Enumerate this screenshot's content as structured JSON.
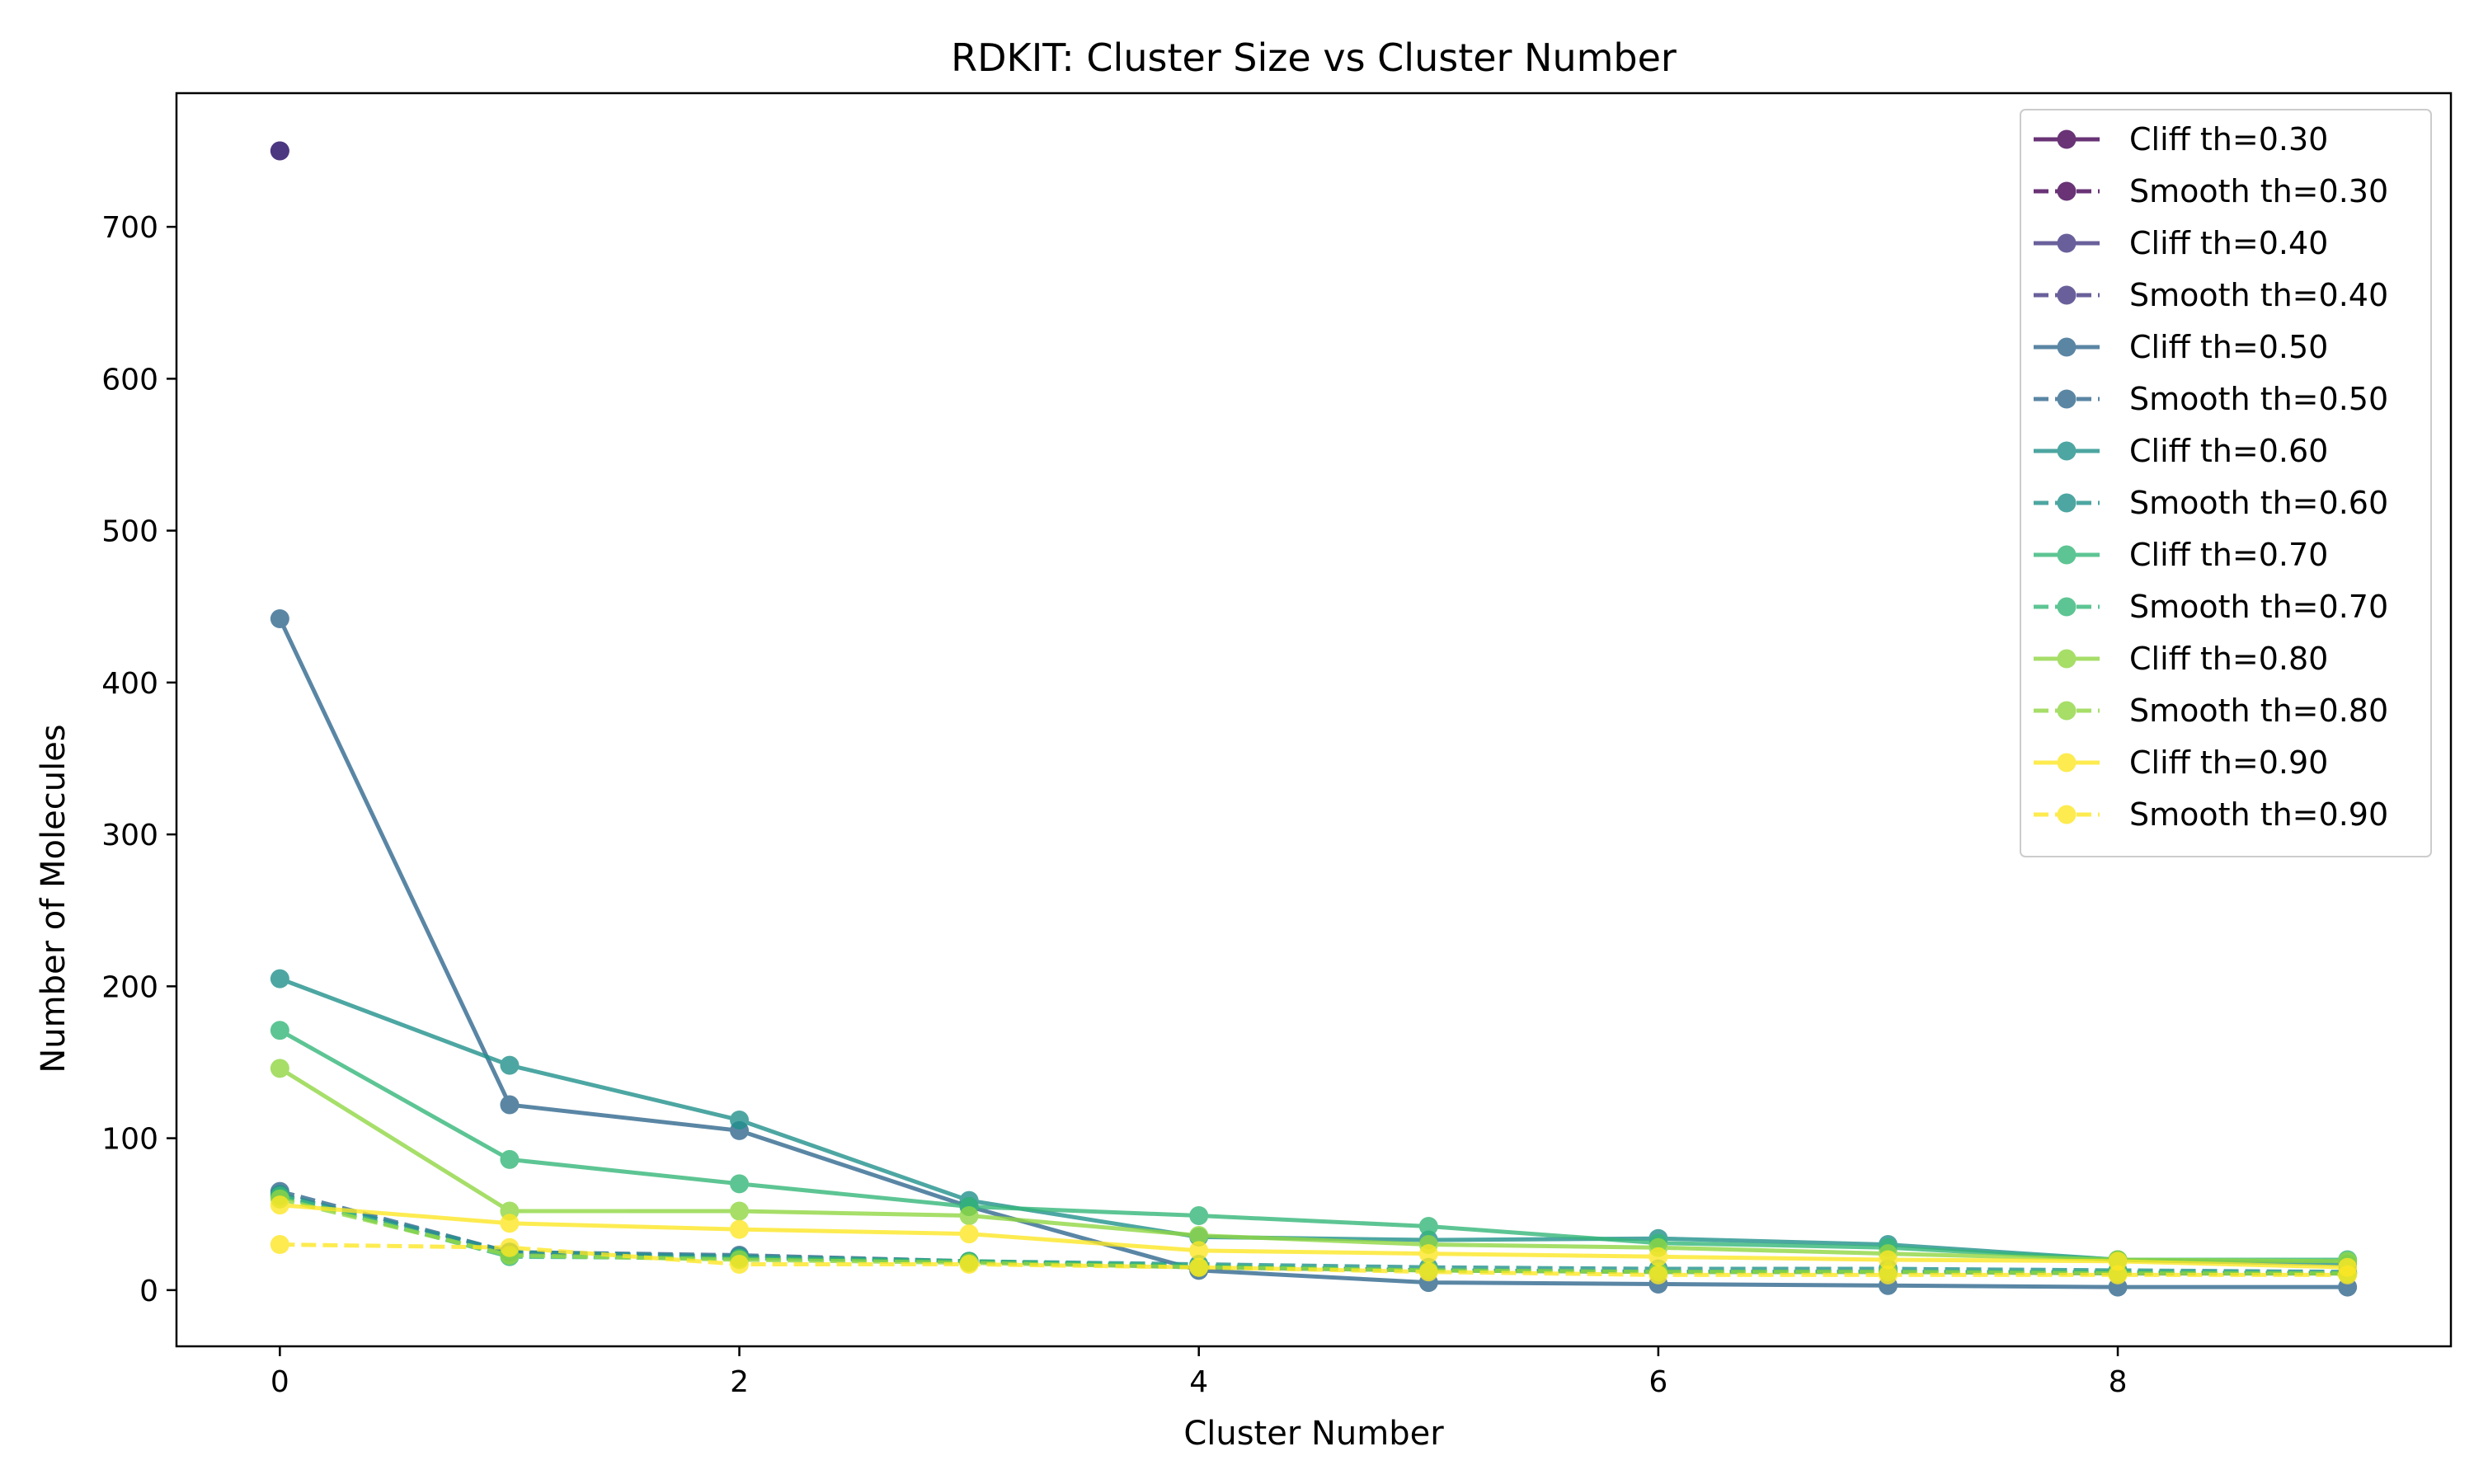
{
  "chart_data": {
    "type": "line",
    "title": "RDKIT: Cluster Size vs Cluster Number",
    "xlabel": "Cluster Number",
    "ylabel": "Number of Molecules",
    "xlim": [
      -0.45,
      9.45
    ],
    "ylim": [
      -37,
      788
    ],
    "xticks": [
      0,
      2,
      4,
      6,
      8
    ],
    "yticks": [
      0,
      100,
      200,
      300,
      400,
      500,
      600,
      700
    ],
    "grid": false,
    "legend_position": "top-right",
    "series": [
      {
        "name": "Cliff th=0.30",
        "style": "solid",
        "color": "#440154",
        "x": [
          0
        ],
        "values": [
          750
        ]
      },
      {
        "name": "Smooth th=0.30",
        "style": "dashed",
        "color": "#440154",
        "x": [],
        "values": []
      },
      {
        "name": "Cliff th=0.40",
        "style": "solid",
        "color": "#443983",
        "x": [
          0
        ],
        "values": [
          750
        ]
      },
      {
        "name": "Smooth th=0.40",
        "style": "dashed",
        "color": "#443983",
        "x": [],
        "values": []
      },
      {
        "name": "Cliff th=0.50",
        "style": "solid",
        "color": "#31688e",
        "x": [
          0,
          1,
          2,
          3,
          4,
          5,
          6,
          7,
          8,
          9
        ],
        "values": [
          442,
          122,
          105,
          55,
          13,
          5,
          4,
          3,
          2,
          2
        ]
      },
      {
        "name": "Smooth th=0.50",
        "style": "dashed",
        "color": "#31688e",
        "x": [
          0,
          1,
          2,
          3,
          4,
          5,
          6,
          7,
          8,
          9
        ],
        "values": [
          65,
          25,
          23,
          19,
          15,
          13,
          12,
          12,
          11,
          11
        ]
      },
      {
        "name": "Cliff th=0.60",
        "style": "solid",
        "color": "#21918c",
        "x": [
          0,
          1,
          2,
          3,
          4,
          5,
          6,
          7,
          8,
          9
        ],
        "values": [
          205,
          148,
          112,
          59,
          35,
          33,
          34,
          30,
          20,
          17
        ]
      },
      {
        "name": "Smooth th=0.60",
        "style": "dashed",
        "color": "#21918c",
        "x": [
          0,
          1,
          2,
          3,
          4,
          5,
          6,
          7,
          8,
          9
        ],
        "values": [
          63,
          25,
          22,
          19,
          17,
          15,
          14,
          14,
          13,
          12
        ]
      },
      {
        "name": "Cliff th=0.70",
        "style": "solid",
        "color": "#35b779",
        "x": [
          0,
          1,
          2,
          3,
          4,
          5,
          6,
          7,
          8,
          9
        ],
        "values": [
          171,
          86,
          70,
          55,
          49,
          42,
          31,
          28,
          20,
          20
        ]
      },
      {
        "name": "Smooth th=0.70",
        "style": "dashed",
        "color": "#35b779",
        "x": [
          0,
          1,
          2,
          3,
          4,
          5,
          6,
          7,
          8,
          9
        ],
        "values": [
          62,
          22,
          21,
          19,
          16,
          13,
          12,
          12,
          12,
          11
        ]
      },
      {
        "name": "Cliff th=0.80",
        "style": "solid",
        "color": "#90d743",
        "x": [
          0,
          1,
          2,
          3,
          4,
          5,
          6,
          7,
          8,
          9
        ],
        "values": [
          146,
          52,
          52,
          49,
          36,
          30,
          28,
          24,
          20,
          19
        ]
      },
      {
        "name": "Smooth th=0.80",
        "style": "dashed",
        "color": "#90d743",
        "x": [
          0,
          1,
          2,
          3,
          4,
          5,
          6,
          7,
          8,
          9
        ],
        "values": [
          60,
          23,
          20,
          18,
          15,
          13,
          12,
          12,
          11,
          11
        ]
      },
      {
        "name": "Cliff th=0.90",
        "style": "solid",
        "color": "#fde725",
        "x": [
          0,
          1,
          2,
          3,
          4,
          5,
          6,
          7,
          8,
          9
        ],
        "values": [
          56,
          44,
          40,
          37,
          26,
          24,
          22,
          20,
          19,
          15
        ]
      },
      {
        "name": "Smooth th=0.90",
        "style": "dashed",
        "color": "#fde725",
        "x": [
          0,
          1,
          2,
          3,
          4,
          5,
          6,
          7,
          8,
          9
        ],
        "values": [
          30,
          28,
          17,
          17,
          15,
          12,
          10,
          10,
          10,
          10
        ]
      }
    ]
  }
}
